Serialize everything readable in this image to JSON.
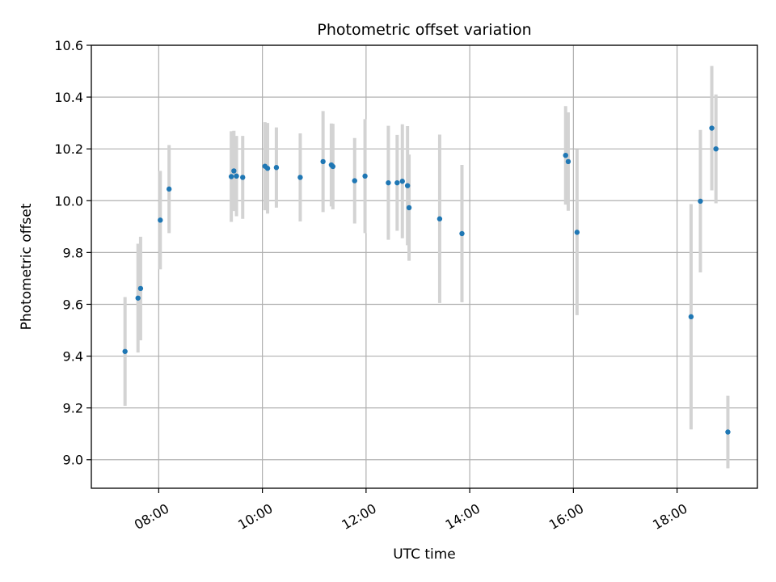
{
  "chart_data": {
    "type": "scatter",
    "title": "Photometric offset variation",
    "xlabel": "UTC time",
    "ylabel": "Photometric offset",
    "x_unit": "hour (UTC)",
    "xlim": [
      6.7,
      19.55
    ],
    "ylim": [
      8.89,
      10.6
    ],
    "grid": true,
    "point_color": "#1f77b4",
    "errorbar_color": "#d3d3d3",
    "x_ticks": [
      {
        "value": 8,
        "label": "08:00"
      },
      {
        "value": 10,
        "label": "10:00"
      },
      {
        "value": 12,
        "label": "12:00"
      },
      {
        "value": 14,
        "label": "14:00"
      },
      {
        "value": 16,
        "label": "16:00"
      },
      {
        "value": 18,
        "label": "18:00"
      }
    ],
    "y_ticks": [
      {
        "value": 9.0,
        "label": "9.0"
      },
      {
        "value": 9.2,
        "label": "9.2"
      },
      {
        "value": 9.4,
        "label": "9.4"
      },
      {
        "value": 9.6,
        "label": "9.6"
      },
      {
        "value": 9.8,
        "label": "9.8"
      },
      {
        "value": 10.0,
        "label": "10.0"
      },
      {
        "value": 10.2,
        "label": "10.2"
      },
      {
        "value": 10.4,
        "label": "10.4"
      },
      {
        "value": 10.6,
        "label": "10.6"
      }
    ],
    "points": [
      {
        "x": 7.35,
        "y": 9.418,
        "err": 0.21
      },
      {
        "x": 7.6,
        "y": 9.624,
        "err": 0.21
      },
      {
        "x": 7.65,
        "y": 9.661,
        "err": 0.2
      },
      {
        "x": 8.03,
        "y": 9.925,
        "err": 0.19
      },
      {
        "x": 8.2,
        "y": 10.045,
        "err": 0.17
      },
      {
        "x": 9.4,
        "y": 10.093,
        "err": 0.175
      },
      {
        "x": 9.45,
        "y": 10.115,
        "err": 0.155
      },
      {
        "x": 9.5,
        "y": 10.095,
        "err": 0.155
      },
      {
        "x": 9.62,
        "y": 10.09,
        "err": 0.16
      },
      {
        "x": 10.05,
        "y": 10.133,
        "err": 0.17
      },
      {
        "x": 10.1,
        "y": 10.125,
        "err": 0.175
      },
      {
        "x": 10.27,
        "y": 10.128,
        "err": 0.155
      },
      {
        "x": 10.73,
        "y": 10.09,
        "err": 0.17
      },
      {
        "x": 11.17,
        "y": 10.151,
        "err": 0.195
      },
      {
        "x": 11.33,
        "y": 10.138,
        "err": 0.16
      },
      {
        "x": 11.36,
        "y": 10.132,
        "err": 0.165
      },
      {
        "x": 11.78,
        "y": 10.077,
        "err": 0.165
      },
      {
        "x": 11.98,
        "y": 10.095,
        "err": 0.22
      },
      {
        "x": 12.43,
        "y": 10.069,
        "err": 0.22
      },
      {
        "x": 12.6,
        "y": 10.069,
        "err": 0.185
      },
      {
        "x": 12.7,
        "y": 10.075,
        "err": 0.22
      },
      {
        "x": 12.8,
        "y": 10.058,
        "err": 0.23
      },
      {
        "x": 12.83,
        "y": 9.973,
        "err": 0.205
      },
      {
        "x": 13.42,
        "y": 9.93,
        "err": 0.325
      },
      {
        "x": 13.85,
        "y": 9.873,
        "err": 0.265
      },
      {
        "x": 15.85,
        "y": 10.175,
        "err": 0.19
      },
      {
        "x": 15.9,
        "y": 10.151,
        "err": 0.19
      },
      {
        "x": 16.07,
        "y": 9.878,
        "err": 0.32
      },
      {
        "x": 18.27,
        "y": 9.552,
        "err": 0.435
      },
      {
        "x": 18.45,
        "y": 9.998,
        "err": 0.275
      },
      {
        "x": 18.67,
        "y": 10.28,
        "err": 0.24
      },
      {
        "x": 18.75,
        "y": 10.2,
        "err": 0.21
      },
      {
        "x": 18.98,
        "y": 9.107,
        "err": 0.14
      }
    ]
  }
}
